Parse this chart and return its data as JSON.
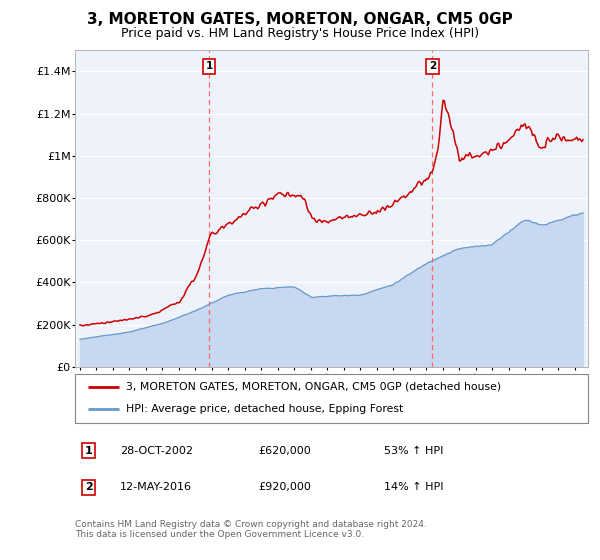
{
  "title": "3, MORETON GATES, MORETON, ONGAR, CM5 0GP",
  "subtitle": "Price paid vs. HM Land Registry's House Price Index (HPI)",
  "ylim": [
    0,
    1500000
  ],
  "yticks": [
    0,
    200000,
    400000,
    600000,
    800000,
    1000000,
    1200000,
    1400000
  ],
  "ytick_labels": [
    "£0",
    "£200K",
    "£400K",
    "£600K",
    "£800K",
    "£1M",
    "£1.2M",
    "£1.4M"
  ],
  "sale1_date": 2002.83,
  "sale1_price": 620000,
  "sale1_label": "1",
  "sale1_date_str": "28-OCT-2002",
  "sale1_price_str": "£620,000",
  "sale1_hpi_str": "53% ↑ HPI",
  "sale2_date": 2016.36,
  "sale2_price": 920000,
  "sale2_label": "2",
  "sale2_date_str": "12-MAY-2016",
  "sale2_price_str": "£920,000",
  "sale2_hpi_str": "14% ↑ HPI",
  "line1_color": "#cc0000",
  "line2_color": "#6699cc",
  "fill2_color": "#c8d8f0",
  "dashed_color": "#ff6666",
  "background_color": "#eef2fa",
  "legend1_label": "3, MORETON GATES, MORETON, ONGAR, CM5 0GP (detached house)",
  "legend2_label": "HPI: Average price, detached house, Epping Forest",
  "footer": "Contains HM Land Registry data © Crown copyright and database right 2024.\nThis data is licensed under the Open Government Licence v3.0.",
  "title_fontsize": 11,
  "subtitle_fontsize": 9
}
